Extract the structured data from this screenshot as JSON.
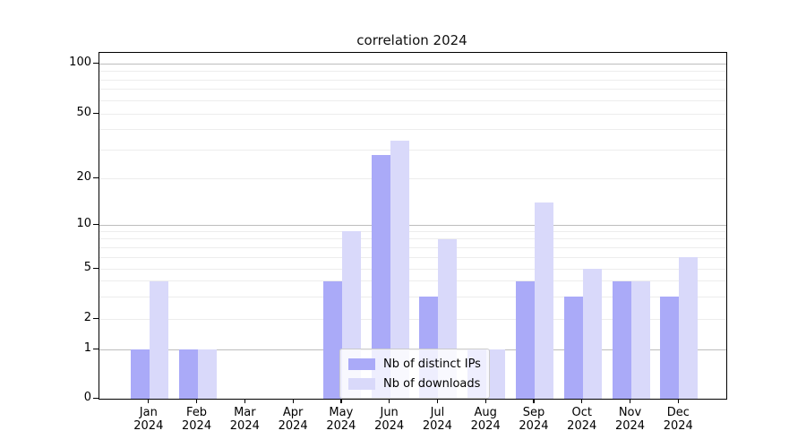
{
  "title": "correlation 2024",
  "legend": {
    "items": [
      {
        "label": "Nb of distinct IPs",
        "color": "#aaaaf8"
      },
      {
        "label": "Nb of downloads",
        "color": "#d9d9fa"
      }
    ]
  },
  "chart_data": {
    "type": "bar",
    "title": "correlation 2024",
    "categories": [
      "Jan 2024",
      "Feb 2024",
      "Mar 2024",
      "Apr 2024",
      "May 2024",
      "Jun 2024",
      "Jul 2024",
      "Aug 2024",
      "Sep 2024",
      "Oct 2024",
      "Nov 2024",
      "Dec 2024"
    ],
    "series": [
      {
        "name": "Nb of distinct IPs",
        "color": "#aaaaf8",
        "values": [
          1,
          1,
          0,
          0,
          4,
          28,
          3,
          1,
          4,
          3,
          4,
          3
        ]
      },
      {
        "name": "Nb of downloads",
        "color": "#d9d9fa",
        "values": [
          4,
          1,
          0,
          0,
          9,
          34,
          8,
          1,
          14,
          5,
          4,
          6
        ]
      }
    ],
    "xlabel": "",
    "ylabel": "",
    "yscale": "symlog",
    "ylim": [
      0,
      115
    ],
    "yticks": [
      0,
      1,
      2,
      5,
      10,
      20,
      50,
      100
    ],
    "ytick_labels": [
      "0",
      "1",
      "2",
      "5",
      "10",
      "20",
      "50",
      "100"
    ],
    "major_gridlines": [
      1,
      10,
      100
    ],
    "minor_gridlines": [
      2,
      3,
      4,
      5,
      6,
      7,
      8,
      9,
      20,
      30,
      40,
      50,
      60,
      70,
      80,
      90
    ],
    "grid": true,
    "legend_position": "lower-center-inside",
    "axis_color": "#000000",
    "major_grid_color": "#bdbdbd",
    "minor_grid_color": "#ededed"
  }
}
